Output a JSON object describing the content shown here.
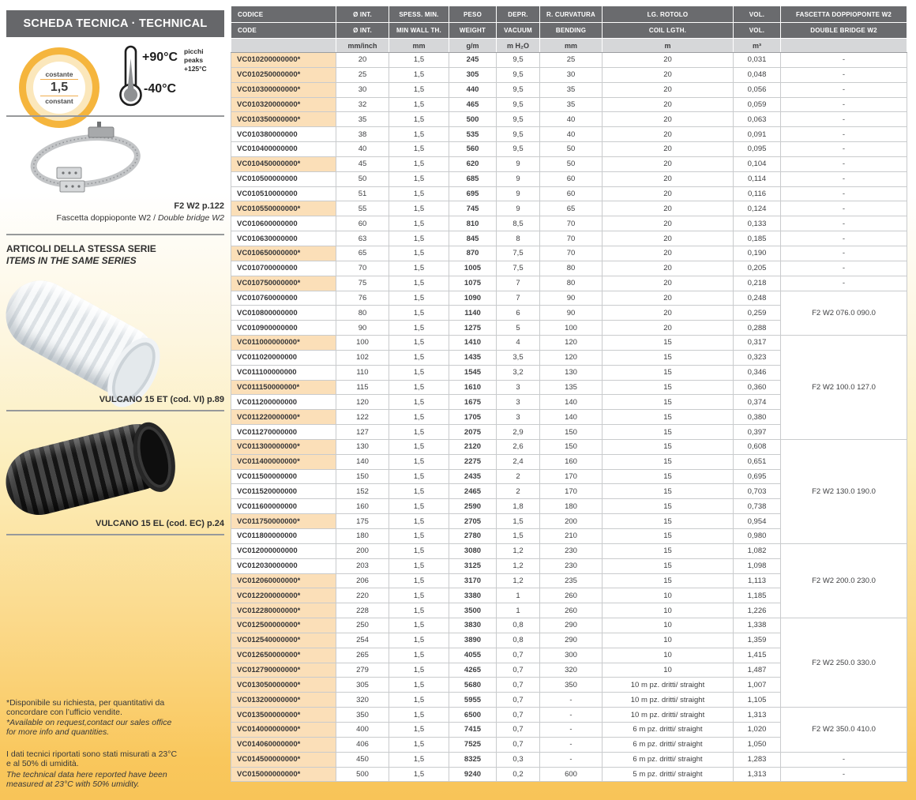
{
  "page": {
    "title": "SCHEDA TECNICA · TECHNICAL DATA"
  },
  "colors": {
    "header_gray": "#6a6b6e",
    "title_bar_gray": "#66676a",
    "units_row_gray": "#d6d7d9",
    "highlight_peach": "#fbdfb8",
    "bottom_amber": "#f8c458",
    "badge_orange": "#f5b53d"
  },
  "left": {
    "badge": {
      "top_label": "costante",
      "value": "1,5",
      "bottom_label": "constant"
    },
    "thermometer": {
      "max_temp": "+90°C",
      "peaks_block": "picchi\npeaks\n+125°C",
      "min_temp": "-40°C"
    },
    "clamp": {
      "ref": "F2 W2 p.122",
      "caption_it": "Fascetta doppioponte W2 / ",
      "caption_en": "Double bridge W2"
    },
    "series": {
      "heading_it": "ARTICOLI DELLA STESSA SERIE",
      "heading_en": "ITEMS IN THE SAME SERIES",
      "item1_caption": "VULCANO 15 ET (cod. VI) p.89",
      "item2_caption": "VULCANO 15 EL (cod. EC) p.24"
    },
    "footnotes": {
      "note1_it": "*Disponibile su richiesta, per quantitativi da\nconcordare con l’ufficio vendite.",
      "note1_en": "*Available on request,contact our sales office\nfor more info and quantities.",
      "note2_it": "I dati tecnici riportati sono stati misurati a 23°C\ne al 50% di umidità.",
      "note2_en": "The technical data here reported have been\nmeasured at 23°C with 50% umidity."
    }
  },
  "table": {
    "headers": {
      "row1": [
        "CODICE",
        "Ø INT.",
        "SPESS. MIN.",
        "PESO",
        "DEPR.",
        "R. CURVATURA",
        "LG. ROTOLO",
        "VOL.",
        "FASCETTA DOPPIOPONTE W2"
      ],
      "row2": [
        "CODE",
        "Ø INT.",
        "MIN WALL TH.",
        "WEIGHT",
        "VACUUM",
        "BENDING",
        "COIL LGTH.",
        "VOL.",
        "DOUBLE BRIDGE W2"
      ],
      "units": [
        "",
        "mm/inch",
        "mm",
        "g/m",
        "m H₂O",
        "mm",
        "m",
        "m³",
        ""
      ]
    },
    "rows": [
      [
        "VC010200000000*",
        1,
        "20",
        "1,5",
        "245",
        "9,5",
        "25",
        "20",
        "0,031",
        "-"
      ],
      [
        "VC010250000000*",
        1,
        "25",
        "1,5",
        "305",
        "9,5",
        "30",
        "20",
        "0,048",
        "-"
      ],
      [
        "VC010300000000*",
        1,
        "30",
        "1,5",
        "440",
        "9,5",
        "35",
        "20",
        "0,056",
        "-"
      ],
      [
        "VC010320000000*",
        1,
        "32",
        "1,5",
        "465",
        "9,5",
        "35",
        "20",
        "0,059",
        "-"
      ],
      [
        "VC010350000000*",
        1,
        "35",
        "1,5",
        "500",
        "9,5",
        "40",
        "20",
        "0,063",
        "-"
      ],
      [
        "VC010380000000",
        0,
        "38",
        "1,5",
        "535",
        "9,5",
        "40",
        "20",
        "0,091",
        "-"
      ],
      [
        "VC010400000000",
        0,
        "40",
        "1,5",
        "560",
        "9,5",
        "50",
        "20",
        "0,095",
        "-"
      ],
      [
        "VC010450000000*",
        1,
        "45",
        "1,5",
        "620",
        "9",
        "50",
        "20",
        "0,104",
        "-"
      ],
      [
        "VC010500000000",
        0,
        "50",
        "1,5",
        "685",
        "9",
        "60",
        "20",
        "0,114",
        "-"
      ],
      [
        "VC010510000000",
        0,
        "51",
        "1,5",
        "695",
        "9",
        "60",
        "20",
        "0,116",
        "-"
      ],
      [
        "VC010550000000*",
        1,
        "55",
        "1,5",
        "745",
        "9",
        "65",
        "20",
        "0,124",
        "-"
      ],
      [
        "VC010600000000",
        0,
        "60",
        "1,5",
        "810",
        "8,5",
        "70",
        "20",
        "0,133",
        "-"
      ],
      [
        "VC010630000000",
        0,
        "63",
        "1,5",
        "845",
        "8",
        "70",
        "20",
        "0,185",
        "-"
      ],
      [
        "VC010650000000*",
        1,
        "65",
        "1,5",
        "870",
        "7,5",
        "70",
        "20",
        "0,190",
        "-"
      ],
      [
        "VC010700000000",
        0,
        "70",
        "1,5",
        "1005",
        "7,5",
        "80",
        "20",
        "0,205",
        "-"
      ],
      [
        "VC010750000000*",
        1,
        "75",
        "1,5",
        "1075",
        "7",
        "80",
        "20",
        "0,218",
        "-"
      ],
      [
        "VC010760000000",
        0,
        "76",
        "1,5",
        "1090",
        "7",
        "90",
        "20",
        "0,248",
        [
          "F2 W2 076.0 090.0",
          3
        ]
      ],
      [
        "VC010800000000",
        0,
        "80",
        "1,5",
        "1140",
        "6",
        "90",
        "20",
        "0,259",
        null
      ],
      [
        "VC010900000000",
        0,
        "90",
        "1,5",
        "1275",
        "5",
        "100",
        "20",
        "0,288",
        null
      ],
      [
        "VC011000000000*",
        1,
        "100",
        "1,5",
        "1410",
        "4",
        "120",
        "15",
        "0,317",
        [
          "F2 W2 100.0 127.0",
          7
        ]
      ],
      [
        "VC011020000000",
        0,
        "102",
        "1,5",
        "1435",
        "3,5",
        "120",
        "15",
        "0,323",
        null
      ],
      [
        "VC011100000000",
        0,
        "110",
        "1,5",
        "1545",
        "3,2",
        "130",
        "15",
        "0,346",
        null
      ],
      [
        "VC011150000000*",
        1,
        "115",
        "1,5",
        "1610",
        "3",
        "135",
        "15",
        "0,360",
        null
      ],
      [
        "VC011200000000",
        0,
        "120",
        "1,5",
        "1675",
        "3",
        "140",
        "15",
        "0,374",
        null
      ],
      [
        "VC011220000000*",
        1,
        "122",
        "1,5",
        "1705",
        "3",
        "140",
        "15",
        "0,380",
        null
      ],
      [
        "VC011270000000",
        0,
        "127",
        "1,5",
        "2075",
        "2,9",
        "150",
        "15",
        "0,397",
        null
      ],
      [
        "VC011300000000*",
        1,
        "130",
        "1,5",
        "2120",
        "2,6",
        "150",
        "15",
        "0,608",
        [
          "F2 W2 130.0 190.0",
          7
        ]
      ],
      [
        "VC011400000000*",
        1,
        "140",
        "1,5",
        "2275",
        "2,4",
        "160",
        "15",
        "0,651",
        null
      ],
      [
        "VC011500000000",
        0,
        "150",
        "1,5",
        "2435",
        "2",
        "170",
        "15",
        "0,695",
        null
      ],
      [
        "VC011520000000",
        0,
        "152",
        "1,5",
        "2465",
        "2",
        "170",
        "15",
        "0,703",
        null
      ],
      [
        "VC011600000000",
        0,
        "160",
        "1,5",
        "2590",
        "1,8",
        "180",
        "15",
        "0,738",
        null
      ],
      [
        "VC011750000000*",
        1,
        "175",
        "1,5",
        "2705",
        "1,5",
        "200",
        "15",
        "0,954",
        null
      ],
      [
        "VC011800000000",
        0,
        "180",
        "1,5",
        "2780",
        "1,5",
        "210",
        "15",
        "0,980",
        null
      ],
      [
        "VC012000000000",
        0,
        "200",
        "1,5",
        "3080",
        "1,2",
        "230",
        "15",
        "1,082",
        [
          "F2 W2 200.0 230.0",
          5
        ]
      ],
      [
        "VC012030000000",
        0,
        "203",
        "1,5",
        "3125",
        "1,2",
        "230",
        "15",
        "1,098",
        null
      ],
      [
        "VC012060000000*",
        1,
        "206",
        "1,5",
        "3170",
        "1,2",
        "235",
        "15",
        "1,113",
        null
      ],
      [
        "VC012200000000*",
        1,
        "220",
        "1,5",
        "3380",
        "1",
        "260",
        "10",
        "1,185",
        null
      ],
      [
        "VC012280000000*",
        1,
        "228",
        "1,5",
        "3500",
        "1",
        "260",
        "10",
        "1,226",
        null
      ],
      [
        "VC012500000000*",
        1,
        "250",
        "1,5",
        "3830",
        "0,8",
        "290",
        "10",
        "1,338",
        [
          "F2 W2 250.0 330.0",
          6
        ]
      ],
      [
        "VC012540000000*",
        1,
        "254",
        "1,5",
        "3890",
        "0,8",
        "290",
        "10",
        "1,359",
        null
      ],
      [
        "VC012650000000*",
        1,
        "265",
        "1,5",
        "4055",
        "0,7",
        "300",
        "10",
        "1,415",
        null
      ],
      [
        "VC012790000000*",
        1,
        "279",
        "1,5",
        "4265",
        "0,7",
        "320",
        "10",
        "1,487",
        null
      ],
      [
        "VC013050000000*",
        1,
        "305",
        "1,5",
        "5680",
        "0,7",
        "350",
        "10 m pz. dritti/ straight",
        "1,007",
        null
      ],
      [
        "VC013200000000*",
        1,
        "320",
        "1,5",
        "5955",
        "0,7",
        "-",
        "10 m pz. dritti/ straight",
        "1,105",
        null
      ],
      [
        "VC013500000000*",
        1,
        "350",
        "1,5",
        "6500",
        "0,7",
        "-",
        "10 m pz. dritti/ straight",
        "1,313",
        [
          "F2 W2 350.0 410.0",
          3
        ]
      ],
      [
        "VC014000000000*",
        1,
        "400",
        "1,5",
        "7415",
        "0,7",
        "-",
        "6 m pz. dritti/ straight",
        "1,020",
        null
      ],
      [
        "VC014060000000*",
        1,
        "406",
        "1,5",
        "7525",
        "0,7",
        "-",
        "6 m pz. dritti/ straight",
        "1,050",
        null
      ],
      [
        "VC014500000000*",
        1,
        "450",
        "1,5",
        "8325",
        "0,3",
        "-",
        "6 m pz. dritti/ straight",
        "1,283",
        "-"
      ],
      [
        "VC015000000000*",
        1,
        "500",
        "1,5",
        "9240",
        "0,2",
        "600",
        "5 m pz. dritti/ straight",
        "1,313",
        "-"
      ]
    ]
  }
}
